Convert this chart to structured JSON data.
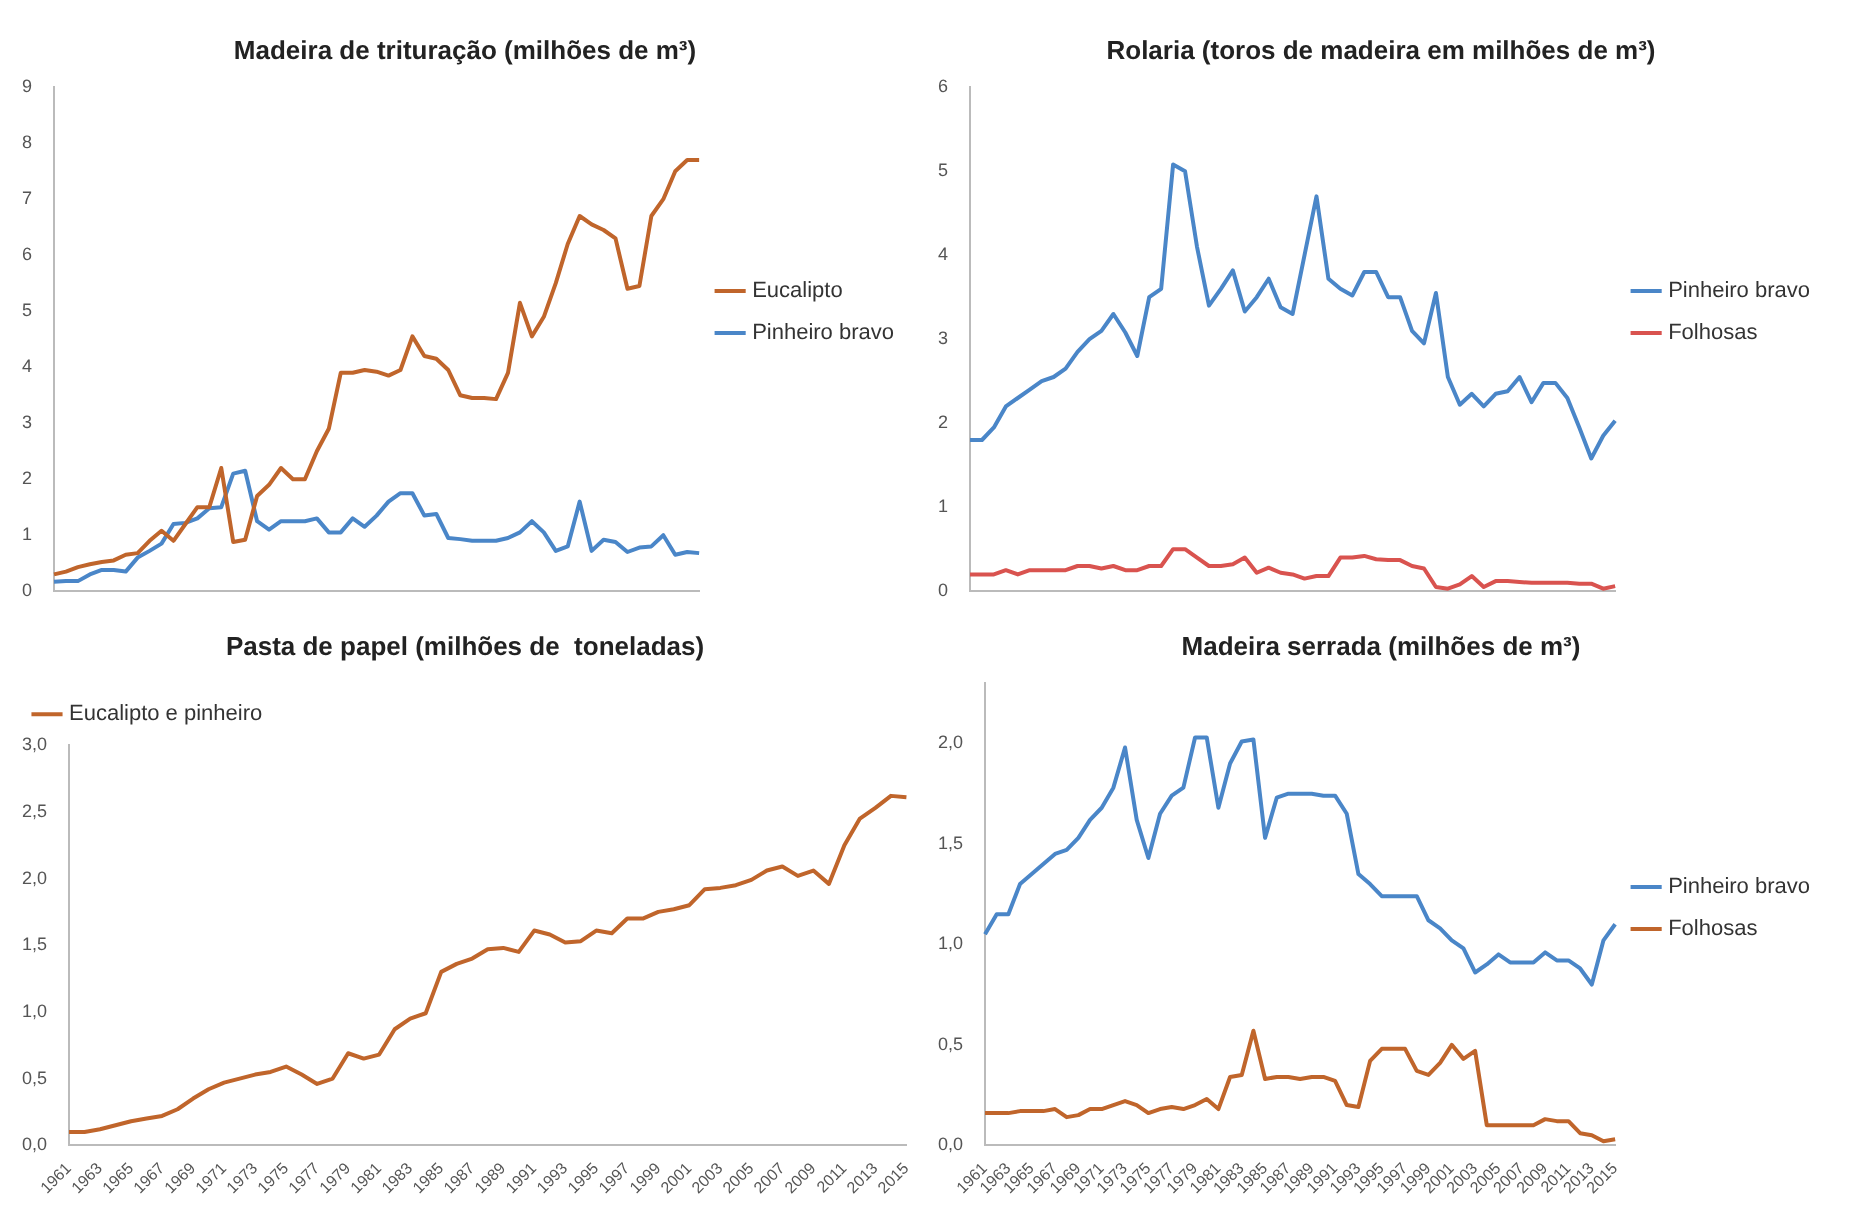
{
  "chart_data": [
    {
      "type": "line",
      "title": "Madeira de trituração (milhões de m³)",
      "categories": [
        null,
        null,
        null,
        null,
        null,
        null,
        null,
        null,
        null,
        null,
        null,
        null,
        null,
        null,
        null,
        null,
        null,
        null,
        null,
        null,
        null,
        null,
        null,
        null,
        null,
        null,
        null,
        null,
        null,
        null,
        null,
        null,
        null,
        null,
        null,
        null,
        null,
        null,
        null,
        null,
        null,
        null,
        null,
        null,
        null,
        null,
        null,
        null,
        null,
        null,
        null,
        null,
        null,
        null,
        null
      ],
      "ylim": [
        0,
        9
      ],
      "yticks": [
        0,
        1,
        2,
        3,
        4,
        5,
        6,
        7,
        8,
        9
      ],
      "tick_labels": "y",
      "grid": false,
      "legend": "right",
      "series": [
        {
          "name": "Eucalipto",
          "color": "#c0652b",
          "values": [
            0.3,
            0.35,
            0.43,
            0.48,
            0.52,
            0.55,
            0.65,
            0.68,
            0.9,
            1.08,
            0.9,
            1.2,
            1.5,
            1.5,
            2.2,
            0.88,
            0.92,
            1.7,
            1.9,
            2.2,
            2.0,
            2.0,
            2.5,
            2.9,
            3.9,
            3.9,
            3.95,
            3.92,
            3.85,
            3.95,
            4.55,
            4.2,
            4.15,
            3.95,
            3.5,
            3.45,
            3.45,
            3.43,
            3.9,
            5.15,
            4.55,
            4.9,
            5.5,
            6.2,
            6.7,
            6.55,
            6.45,
            6.3,
            5.4,
            5.45,
            6.7,
            7.0,
            7.5,
            7.7,
            7.7
          ]
        },
        {
          "name": "Pinheiro bravo",
          "color": "#4a86c8",
          "values": [
            0.17,
            0.18,
            0.18,
            0.3,
            0.38,
            0.38,
            0.35,
            0.6,
            0.72,
            0.85,
            1.2,
            1.22,
            1.3,
            1.48,
            1.5,
            2.1,
            2.15,
            1.25,
            1.1,
            1.25,
            1.25,
            1.25,
            1.3,
            1.05,
            1.05,
            1.3,
            1.15,
            1.35,
            1.6,
            1.75,
            1.75,
            1.35,
            1.38,
            0.95,
            0.93,
            0.9,
            0.9,
            0.9,
            0.95,
            1.05,
            1.25,
            1.05,
            0.72,
            0.8,
            1.6,
            0.72,
            0.92,
            0.88,
            0.7,
            0.78,
            0.8,
            1.0,
            0.65,
            0.7,
            0.68
          ]
        }
      ]
    },
    {
      "type": "line",
      "title": "Rolaria (toros de madeira em milhões de m³)",
      "categories": [
        null,
        null,
        null,
        null,
        null,
        null,
        null,
        null,
        null,
        null,
        null,
        null,
        null,
        null,
        null,
        null,
        null,
        null,
        null,
        null,
        null,
        null,
        null,
        null,
        null,
        null,
        null,
        null,
        null,
        null,
        null,
        null,
        null,
        null,
        null,
        null,
        null,
        null,
        null,
        null,
        null,
        null,
        null,
        null,
        null,
        null,
        null,
        null,
        null,
        null,
        null,
        null,
        null,
        null,
        null
      ],
      "ylim": [
        0,
        6
      ],
      "yticks": [
        0,
        1,
        2,
        3,
        4,
        5,
        6
      ],
      "tick_labels": "y",
      "grid": false,
      "legend": "right",
      "series": [
        {
          "name": "Pinheiro bravo",
          "color": "#4a86c8",
          "values": [
            1.8,
            1.8,
            1.95,
            2.2,
            2.3,
            2.4,
            2.5,
            2.55,
            2.65,
            2.85,
            3.0,
            3.1,
            3.3,
            3.08,
            2.8,
            3.5,
            3.6,
            5.08,
            5.0,
            4.1,
            3.4,
            3.6,
            3.82,
            3.33,
            3.5,
            3.72,
            3.38,
            3.3,
            4.0,
            4.7,
            3.72,
            3.6,
            3.52,
            3.8,
            3.8,
            3.5,
            3.5,
            3.1,
            2.95,
            3.55,
            2.55,
            2.22,
            2.35,
            2.2,
            2.35,
            2.38,
            2.55,
            2.25,
            2.48,
            2.48,
            2.3,
            1.95,
            1.58,
            1.85,
            2.03
          ]
        },
        {
          "name": "Folhosas",
          "color": "#d9534f",
          "values": [
            0.2,
            0.2,
            0.2,
            0.25,
            0.2,
            0.25,
            0.25,
            0.25,
            0.25,
            0.3,
            0.3,
            0.27,
            0.3,
            0.25,
            0.25,
            0.3,
            0.3,
            0.5,
            0.5,
            0.4,
            0.3,
            0.3,
            0.32,
            0.4,
            0.22,
            0.28,
            0.22,
            0.2,
            0.15,
            0.18,
            0.18,
            0.4,
            0.4,
            0.42,
            0.38,
            0.37,
            0.37,
            0.3,
            0.27,
            0.05,
            0.03,
            0.08,
            0.18,
            0.05,
            0.12,
            0.12,
            0.11,
            0.1,
            0.1,
            0.1,
            0.1,
            0.09,
            0.09,
            0.03,
            0.06
          ]
        }
      ]
    },
    {
      "type": "line",
      "title": "Pasta de papel (milhões de  toneladas)",
      "categories": [
        "1961",
        null,
        "1963",
        null,
        "1965",
        null,
        "1967",
        null,
        "1969",
        null,
        "1971",
        null,
        "1973",
        null,
        "1975",
        null,
        "1977",
        null,
        "1979",
        null,
        "1981",
        null,
        "1983",
        null,
        "1985",
        null,
        "1987",
        null,
        "1989",
        null,
        "1991",
        null,
        "1993",
        null,
        "1995",
        null,
        "1997",
        null,
        "1999",
        null,
        "2001",
        null,
        "2003",
        null,
        "2005",
        null,
        "2007",
        null,
        "2009",
        null,
        "2011",
        null,
        "2013",
        null,
        "2015"
      ],
      "ylim": [
        0,
        3
      ],
      "yticks": [
        {
          "value": 0,
          "label": "0,0"
        },
        {
          "value": 0.5,
          "label": "0,5"
        },
        {
          "value": 1,
          "label": "1,0"
        },
        {
          "value": 1.5,
          "label": "1,5"
        },
        {
          "value": 2,
          "label": "2,0"
        },
        {
          "value": 2.5,
          "label": "2,5"
        },
        {
          "value": 3,
          "label": "3,0"
        }
      ],
      "grid": false,
      "legend": "top left",
      "series": [
        {
          "name": "Eucalipto e pinheiro",
          "color": "#c0652b",
          "values": [
            0.1,
            0.1,
            0.12,
            0.15,
            0.18,
            0.2,
            0.22,
            0.27,
            0.35,
            0.42,
            0.47,
            0.5,
            0.53,
            0.55,
            0.59,
            0.53,
            0.46,
            0.5,
            0.69,
            0.65,
            0.68,
            0.87,
            0.95,
            0.99,
            1.3,
            1.36,
            1.4,
            1.47,
            1.48,
            1.45,
            1.61,
            1.58,
            1.52,
            1.53,
            1.61,
            1.59,
            1.7,
            1.7,
            1.75,
            1.77,
            1.8,
            1.92,
            1.93,
            1.95,
            1.99,
            2.06,
            2.09,
            2.02,
            2.06,
            1.96,
            2.25,
            2.45,
            2.53,
            2.62,
            2.61
          ]
        }
      ]
    },
    {
      "type": "line",
      "title": "Madeira serrada (milhões de m³)",
      "categories": [
        "1961",
        null,
        "1963",
        null,
        "1965",
        null,
        "1967",
        null,
        "1969",
        null,
        "1971",
        null,
        "1973",
        null,
        "1975",
        null,
        "1977",
        null,
        "1979",
        null,
        "1981",
        null,
        "1983",
        null,
        "1985",
        null,
        "1987",
        null,
        "1989",
        null,
        "1991",
        null,
        "1993",
        null,
        "1995",
        null,
        "1997",
        null,
        "1999",
        null,
        "2001",
        null,
        "2003",
        null,
        "2005",
        null,
        "2007",
        null,
        "2009",
        null,
        "2011",
        null,
        "2013",
        null,
        "2015"
      ],
      "ylim": [
        0,
        2.3
      ],
      "yticks": [
        {
          "value": 0,
          "label": "0,0"
        },
        {
          "value": 0.5,
          "label": "0,5"
        },
        {
          "value": 1,
          "label": "1,0"
        },
        {
          "value": 1.5,
          "label": "1,5"
        },
        {
          "value": 2,
          "label": "2,0"
        }
      ],
      "grid": false,
      "legend": "right",
      "series": [
        {
          "name": "Pinheiro bravo",
          "color": "#4a86c8",
          "values": [
            1.05,
            1.15,
            1.15,
            1.3,
            1.35,
            1.4,
            1.45,
            1.47,
            1.53,
            1.62,
            1.68,
            1.78,
            1.98,
            1.62,
            1.43,
            1.65,
            1.74,
            1.78,
            2.03,
            2.03,
            1.68,
            1.9,
            2.01,
            2.02,
            1.53,
            1.73,
            1.75,
            1.75,
            1.75,
            1.74,
            1.74,
            1.65,
            1.35,
            1.3,
            1.24,
            1.24,
            1.24,
            1.24,
            1.12,
            1.08,
            1.02,
            0.98,
            0.86,
            0.9,
            0.95,
            0.91,
            0.91,
            0.91,
            0.96,
            0.92,
            0.92,
            0.88,
            0.8,
            1.02,
            1.1
          ]
        },
        {
          "name": "Folhosas",
          "color": "#c0652b",
          "values": [
            0.16,
            0.16,
            0.16,
            0.17,
            0.17,
            0.17,
            0.18,
            0.14,
            0.15,
            0.18,
            0.18,
            0.2,
            0.22,
            0.2,
            0.16,
            0.18,
            0.19,
            0.18,
            0.2,
            0.23,
            0.18,
            0.34,
            0.35,
            0.57,
            0.33,
            0.34,
            0.34,
            0.33,
            0.34,
            0.34,
            0.32,
            0.2,
            0.19,
            0.42,
            0.48,
            0.48,
            0.48,
            0.37,
            0.35,
            0.41,
            0.5,
            0.43,
            0.47,
            0.1,
            0.1,
            0.1,
            0.1,
            0.1,
            0.13,
            0.12,
            0.12,
            0.06,
            0.05,
            0.02,
            0.03
          ]
        }
      ]
    }
  ]
}
